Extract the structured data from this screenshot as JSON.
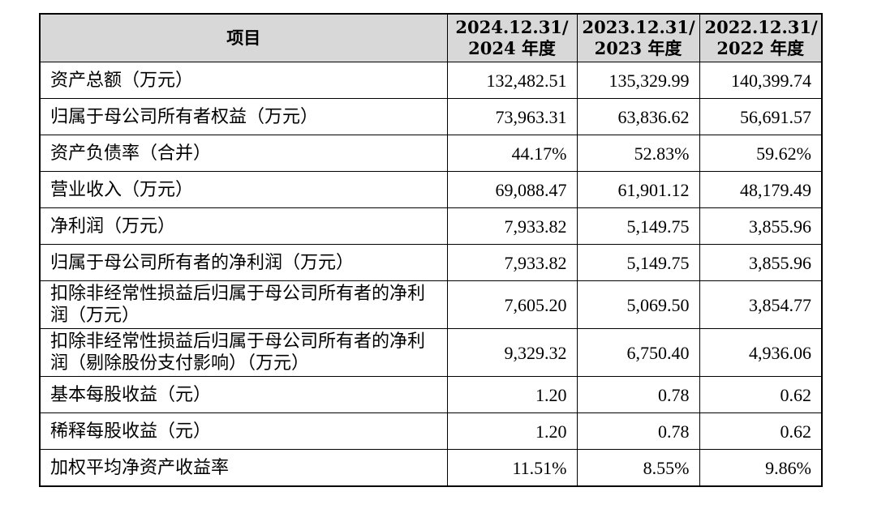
{
  "header": {
    "item": "项目",
    "col1_line1": "2024.12.31/",
    "col1_line2": "2024 年度",
    "col2_line1": "2023.12.31/",
    "col2_line2": "2023 年度",
    "col3_line1": "2022.12.31/",
    "col3_line2": "2022 年度"
  },
  "rows": [
    {
      "label": "资产总额（万元）",
      "v2024": "132,482.51",
      "v2023": "135,329.99",
      "v2022": "140,399.74"
    },
    {
      "label": "归属于母公司所有者权益（万元）",
      "v2024": "73,963.31",
      "v2023": "63,836.62",
      "v2022": "56,691.57"
    },
    {
      "label": "资产负债率（合并）",
      "v2024": "44.17%",
      "v2023": "52.83%",
      "v2022": "59.62%"
    },
    {
      "label": "营业收入（万元）",
      "v2024": "69,088.47",
      "v2023": "61,901.12",
      "v2022": "48,179.49"
    },
    {
      "label": "净利润（万元）",
      "v2024": "7,933.82",
      "v2023": "5,149.75",
      "v2022": "3,855.96"
    },
    {
      "label": "归属于母公司所有者的净利润（万元）",
      "v2024": "7,933.82",
      "v2023": "5,149.75",
      "v2022": "3,855.96"
    },
    {
      "label": "扣除非经常性损益后归属于母公司所有者的净利润（万元）",
      "v2024": "7,605.20",
      "v2023": "5,069.50",
      "v2022": "3,854.77"
    },
    {
      "label": "扣除非经常性损益后归属于母公司所有者的净利润（剔除股份支付影响）（万元）",
      "v2024": "9,329.32",
      "v2023": "6,750.40",
      "v2022": "4,936.06"
    },
    {
      "label": "基本每股收益（元）",
      "v2024": "1.20",
      "v2023": "0.78",
      "v2022": "0.62"
    },
    {
      "label": "稀释每股收益（元）",
      "v2024": "1.20",
      "v2023": "0.78",
      "v2022": "0.62"
    },
    {
      "label": "加权平均净资产收益率",
      "v2024": "11.51%",
      "v2023": "8.55%",
      "v2022": "9.86%"
    }
  ]
}
